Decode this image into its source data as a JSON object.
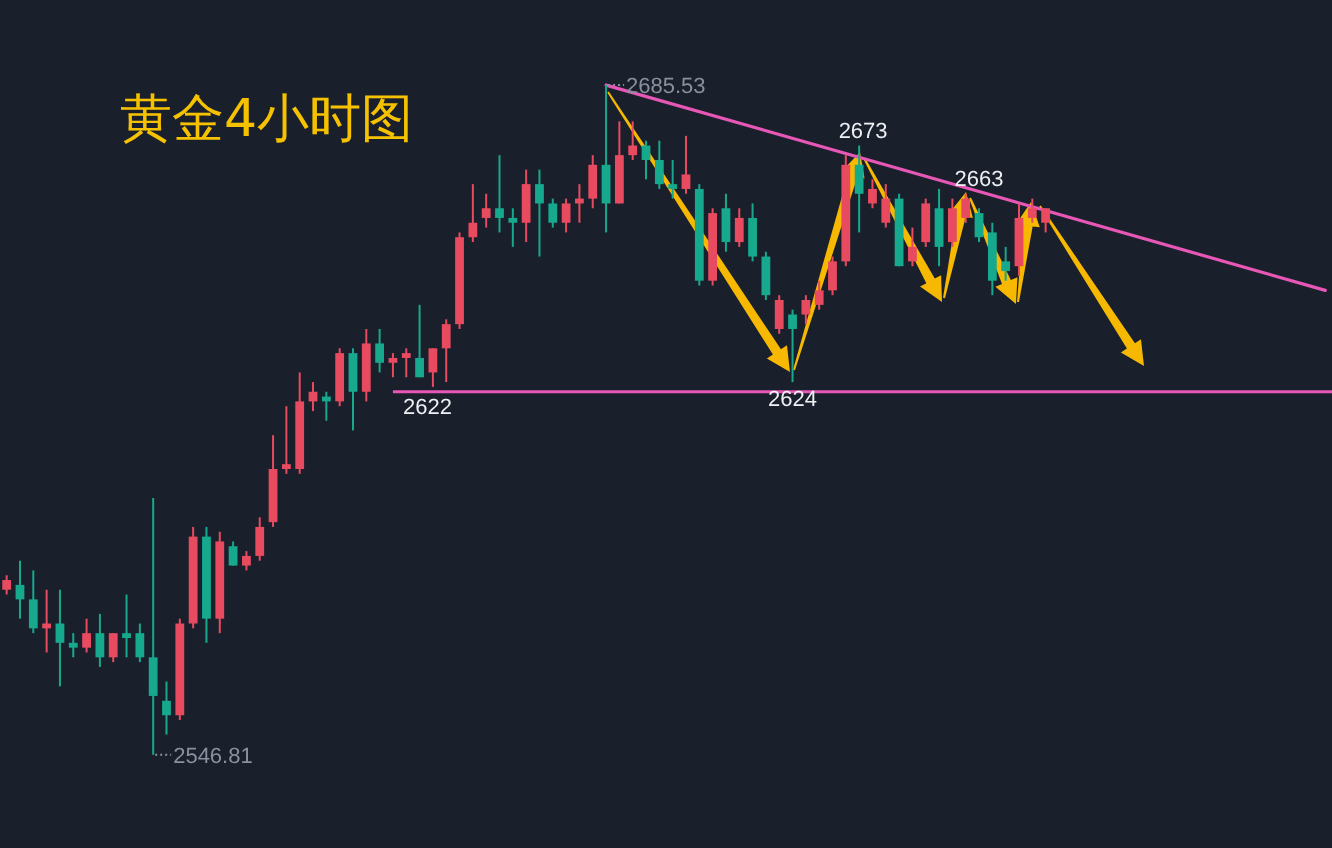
{
  "chart_data": {
    "type": "candlestick",
    "title": "黄金4小时图",
    "categories": [
      null,
      null,
      null,
      null,
      null,
      null,
      null,
      null,
      null,
      null,
      null,
      null,
      null,
      null,
      null,
      null,
      null,
      null,
      null,
      null,
      null,
      null,
      null,
      null,
      null,
      null,
      null,
      null,
      null,
      null,
      null,
      null,
      null,
      null,
      null,
      null,
      null,
      null,
      null,
      null,
      null,
      null,
      null,
      null,
      null,
      null,
      null,
      null,
      null,
      null,
      null,
      null,
      null,
      null,
      null,
      null,
      null,
      null,
      null,
      null,
      null,
      null,
      null,
      null,
      null,
      null,
      null,
      null,
      null,
      null,
      null,
      null,
      null,
      null,
      null,
      null,
      null,
      null,
      null,
      null,
      null,
      null,
      null,
      null,
      null,
      null,
      null,
      null,
      null,
      null,
      null,
      null,
      null,
      null,
      null,
      null,
      null,
      null,
      null,
      null
    ],
    "ohlc": [
      [
        2581,
        2584,
        2580,
        2583
      ],
      [
        2582,
        2587,
        2575,
        2579
      ],
      [
        2579,
        2585,
        2572,
        2573
      ],
      [
        2573,
        2581,
        2568,
        2574
      ],
      [
        2574,
        2581,
        2561,
        2570
      ],
      [
        2570,
        2572,
        2567,
        2569
      ],
      [
        2569,
        2575,
        2568,
        2572
      ],
      [
        2572,
        2576,
        2565,
        2567
      ],
      [
        2567,
        2572,
        2566,
        2572
      ],
      [
        2572,
        2580,
        2567,
        2571
      ],
      [
        2572,
        2574,
        2566,
        2567
      ],
      [
        2567,
        2600,
        2546.81,
        2559
      ],
      [
        2558,
        2562,
        2551,
        2555
      ],
      [
        2555,
        2575,
        2554,
        2574
      ],
      [
        2574,
        2594,
        2573,
        2592
      ],
      [
        2592,
        2594,
        2570,
        2575
      ],
      [
        2575,
        2593,
        2572,
        2591
      ],
      [
        2590,
        2591,
        2586,
        2586
      ],
      [
        2586,
        2589,
        2585,
        2588
      ],
      [
        2588,
        2596,
        2587,
        2594
      ],
      [
        2595,
        2613,
        2594,
        2606
      ],
      [
        2606,
        2619,
        2605,
        2607
      ],
      [
        2606,
        2626,
        2605,
        2620
      ],
      [
        2620,
        2624,
        2618,
        2622
      ],
      [
        2621,
        2622,
        2616,
        2620
      ],
      [
        2620,
        2631,
        2619,
        2630
      ],
      [
        2630,
        2631,
        2614,
        2622
      ],
      [
        2622,
        2635,
        2620,
        2632
      ],
      [
        2632,
        2635,
        2626,
        2628
      ],
      [
        2628,
        2630,
        2625,
        2629
      ],
      [
        2629,
        2631,
        2625,
        2630
      ],
      [
        2629,
        2640,
        2625,
        2625
      ],
      [
        2626,
        2631,
        2623,
        2631
      ],
      [
        2631,
        2637,
        2624,
        2636
      ],
      [
        2636,
        2655,
        2635,
        2654
      ],
      [
        2654,
        2665,
        2653,
        2657
      ],
      [
        2658,
        2663,
        2656,
        2660
      ],
      [
        2660,
        2671,
        2655,
        2658
      ],
      [
        2658,
        2660,
        2652,
        2657
      ],
      [
        2657,
        2668,
        2653,
        2665
      ],
      [
        2665,
        2668,
        2650,
        2661
      ],
      [
        2661,
        2662,
        2656,
        2657
      ],
      [
        2657,
        2662,
        2655,
        2661
      ],
      [
        2661,
        2665,
        2657,
        2662
      ],
      [
        2662,
        2671,
        2660,
        2669
      ],
      [
        2669,
        2685.53,
        2655,
        2661
      ],
      [
        2661,
        2678,
        2661,
        2671
      ],
      [
        2671,
        2678,
        2670,
        2673
      ],
      [
        2673,
        2674,
        2666,
        2670
      ],
      [
        2670,
        2674,
        2664,
        2665
      ],
      [
        2665,
        2670,
        2662,
        2664
      ],
      [
        2664,
        2675,
        2663,
        2667
      ],
      [
        2664,
        2665,
        2644,
        2645
      ],
      [
        2645,
        2660,
        2644,
        2659
      ],
      [
        2660,
        2663,
        2651,
        2653
      ],
      [
        2653,
        2660,
        2652,
        2658
      ],
      [
        2658,
        2661,
        2649,
        2650
      ],
      [
        2650,
        2651,
        2641,
        2642
      ],
      [
        2635,
        2642,
        2634,
        2641
      ],
      [
        2638,
        2639,
        2624,
        2635
      ],
      [
        2638,
        2642,
        2636,
        2641
      ],
      [
        2640,
        2645,
        2639,
        2643
      ],
      [
        2643,
        2650,
        2642,
        2649
      ],
      [
        2649,
        2671,
        2648,
        2669
      ],
      [
        2669,
        2673,
        2655,
        2663
      ],
      [
        2661,
        2666,
        2660,
        2664
      ],
      [
        2657,
        2665,
        2656,
        2662
      ],
      [
        2662,
        2663,
        2648,
        2648
      ],
      [
        2649,
        2656,
        2648,
        2652
      ],
      [
        2653,
        2662,
        2652,
        2661
      ],
      [
        2660,
        2664,
        2648,
        2652
      ],
      [
        2653,
        2662,
        2652,
        2660
      ],
      [
        2658,
        2663,
        2657,
        2662
      ],
      [
        2659,
        2660,
        2653,
        2654
      ],
      [
        2655,
        2657,
        2642,
        2645
      ],
      [
        2649,
        2652,
        2645,
        2647
      ],
      [
        2648,
        2661,
        2646,
        2658
      ],
      [
        2658,
        2662,
        2657,
        2660
      ],
      [
        2657,
        2660,
        2655,
        2660
      ],
      null,
      null,
      null,
      null,
      null,
      null,
      null,
      null,
      null,
      null,
      null,
      null,
      null,
      null,
      null,
      null,
      null,
      null,
      null,
      null,
      null
    ],
    "colors": [
      "#e84b5f",
      "#17a98d",
      "#17a98d",
      "#e84b5f",
      "#17a98d",
      "#17a98d",
      "#e84b5f",
      "#17a98d",
      "#e84b5f",
      "#17a98d",
      "#17a98d",
      "#17a98d",
      "#17a98d",
      "#e84b5f",
      "#e84b5f",
      "#17a98d",
      "#e84b5f",
      "#17a98d",
      "#e84b5f",
      "#e84b5f",
      "#e84b5f",
      "#e84b5f",
      "#e84b5f",
      "#e84b5f",
      "#17a98d",
      "#e84b5f",
      "#17a98d",
      "#e84b5f",
      "#17a98d",
      "#e84b5f",
      "#e84b5f",
      "#17a98d",
      "#e84b5f",
      "#e84b5f",
      "#e84b5f",
      "#e84b5f",
      "#e84b5f",
      "#17a98d",
      "#17a98d",
      "#e84b5f",
      "#17a98d",
      "#17a98d",
      "#e84b5f",
      "#e84b5f",
      "#e84b5f",
      "#17a98d",
      "#e84b5f",
      "#e84b5f",
      "#17a98d",
      "#17a98d",
      "#17a98d",
      "#e84b5f",
      "#17a98d",
      "#e84b5f",
      "#17a98d",
      "#e84b5f",
      "#17a98d",
      "#17a98d",
      "#e84b5f",
      "#17a98d",
      "#e84b5f",
      "#e84b5f",
      "#e84b5f",
      "#e84b5f",
      "#17a98d",
      "#e84b5f",
      "#e84b5f",
      "#17a98d",
      "#e84b5f",
      "#e84b5f",
      "#17a98d",
      "#e84b5f",
      "#e84b5f",
      "#17a98d",
      "#17a98d",
      "#17a98d",
      "#e84b5f",
      "#e84b5f",
      "#e84b5f",
      null,
      null,
      null,
      null,
      null,
      null,
      null,
      null,
      null,
      null,
      null,
      null,
      null,
      null,
      null,
      null,
      null,
      null,
      null,
      null,
      null
    ],
    "series": [
      {
        "type": "line",
        "color": "#e657b6",
        "values": [
          null,
          null,
          null,
          null,
          null,
          null,
          null,
          null,
          null,
          null,
          null,
          null,
          null,
          null,
          null,
          null,
          null,
          null,
          null,
          null,
          null,
          null,
          null,
          null,
          null,
          null,
          null,
          null,
          null,
          null,
          null,
          null,
          null,
          null,
          null,
          null,
          null,
          null,
          null,
          null,
          null,
          null,
          null,
          null,
          null,
          2685.5,
          null,
          null,
          null,
          null,
          null,
          null,
          null,
          null,
          null,
          null,
          null,
          null,
          null,
          null,
          null,
          null,
          null,
          null,
          null,
          null,
          null,
          null,
          null,
          null,
          null,
          null,
          null,
          null,
          null,
          null,
          null,
          null,
          null,
          null,
          null,
          null,
          null,
          null,
          null,
          null,
          null,
          null,
          null,
          null,
          null,
          null,
          null,
          null,
          null,
          null,
          null,
          null,
          null,
          2643
        ]
      }
    ],
    "ref_lines": [
      {
        "axis": "y",
        "value": 2622,
        "label": "2622",
        "color": "#e657b6"
      }
    ],
    "annotations": [
      "2685.53",
      "2546.81",
      {
        "text": "2673",
        "y": 2673
      },
      {
        "text": "2663",
        "y": 2663
      },
      {
        "text": "2624",
        "y": 2624
      }
    ]
  }
}
